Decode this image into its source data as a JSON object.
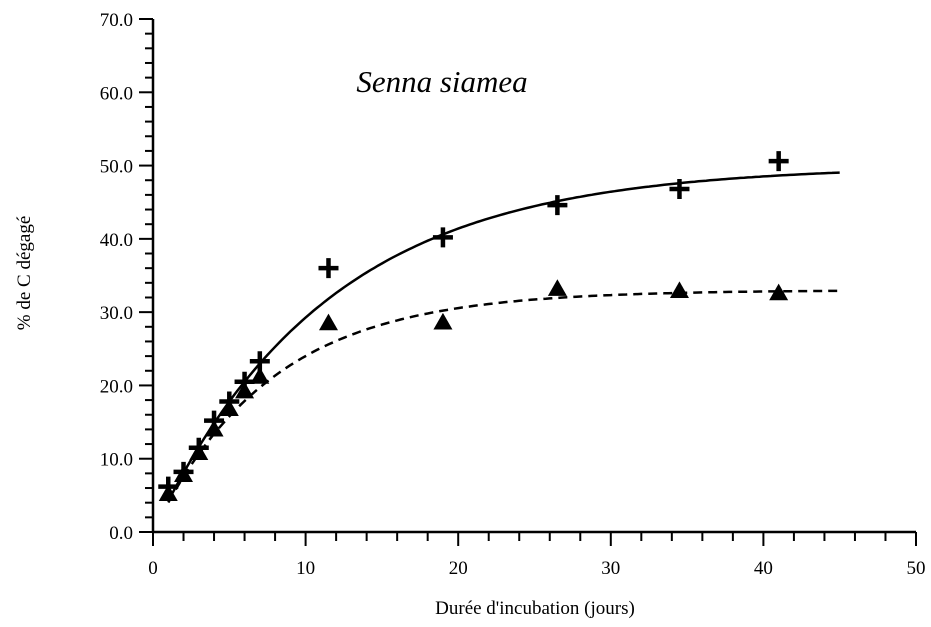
{
  "chart_data": {
    "type": "scatter",
    "title": "Senna siamea",
    "xlabel": "Durée d'incubation (jours)",
    "ylabel": "% de C dégagé",
    "xlim": [
      0,
      50
    ],
    "ylim": [
      0,
      70
    ],
    "x_ticks": [
      "0",
      "10",
      "20",
      "30",
      "40",
      "50"
    ],
    "y_ticks": [
      "0.0",
      "10.0",
      "20.0",
      "30.0",
      "40.0",
      "50.0",
      "60.0",
      "70.0"
    ],
    "grid": false,
    "series": [
      {
        "marker": "plus",
        "color": "#000000",
        "points": [
          {
            "x": 1,
            "y": 6.2
          },
          {
            "x": 2,
            "y": 8.2
          },
          {
            "x": 3,
            "y": 11.5
          },
          {
            "x": 4,
            "y": 15.2
          },
          {
            "x": 5,
            "y": 17.8
          },
          {
            "x": 6,
            "y": 20.5
          },
          {
            "x": 7,
            "y": 23.3
          },
          {
            "x": 11.5,
            "y": 36.0
          },
          {
            "x": 19,
            "y": 40.2
          },
          {
            "x": 26.5,
            "y": 44.6
          },
          {
            "x": 34.5,
            "y": 46.8
          },
          {
            "x": 41,
            "y": 50.6
          }
        ],
        "fit": {
          "style": "solid",
          "plateau": 50.0,
          "rate": 0.088
        }
      },
      {
        "marker": "triangle",
        "color": "#000000",
        "points": [
          {
            "x": 1,
            "y": 5.2
          },
          {
            "x": 2,
            "y": 7.8
          },
          {
            "x": 3,
            "y": 10.8
          },
          {
            "x": 4,
            "y": 14.0
          },
          {
            "x": 5,
            "y": 16.8
          },
          {
            "x": 6,
            "y": 19.2
          },
          {
            "x": 7,
            "y": 21.2
          },
          {
            "x": 11.5,
            "y": 28.5
          },
          {
            "x": 19,
            "y": 28.6
          },
          {
            "x": 26.5,
            "y": 33.2
          },
          {
            "x": 34.5,
            "y": 32.9
          },
          {
            "x": 41,
            "y": 32.6
          }
        ],
        "fit": {
          "style": "dashed",
          "plateau": 33.0,
          "rate": 0.13
        }
      }
    ]
  }
}
